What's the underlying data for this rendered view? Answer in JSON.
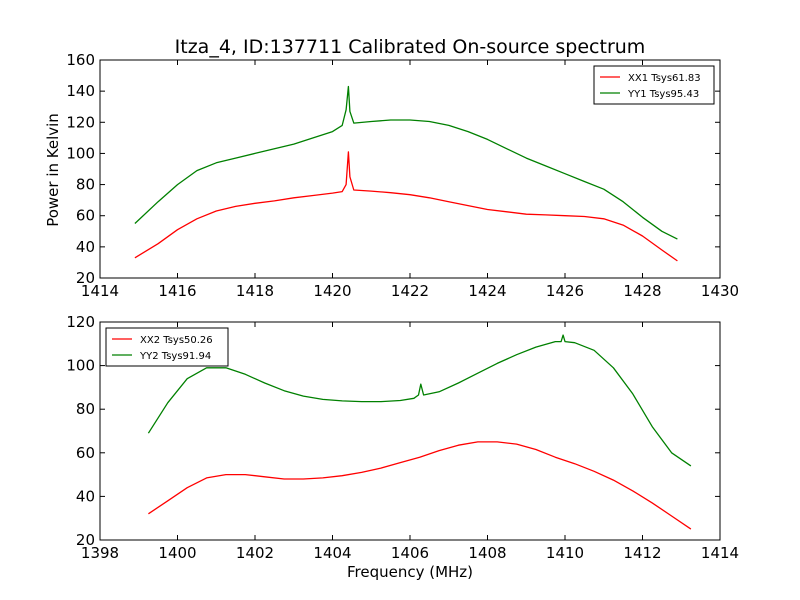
{
  "figure": {
    "title": "Itza_4, ID:137711 Calibrated On-source spectrum",
    "shared_ylabel": "Power in Kelvin",
    "shared_xlabel": "Frequency (MHz)"
  },
  "chart_data": [
    {
      "type": "line",
      "title": "Itza_4, ID:137711 Calibrated On-source spectrum",
      "xlabel": "",
      "ylabel": "Power in Kelvin",
      "xlim": [
        1414,
        1430
      ],
      "ylim": [
        20,
        160
      ],
      "xticks": [
        "1414",
        "1416",
        "1418",
        "1420",
        "1422",
        "1424",
        "1426",
        "1428",
        "1430"
      ],
      "yticks": [
        "20",
        "40",
        "60",
        "80",
        "100",
        "120",
        "140",
        "160"
      ],
      "grid": false,
      "legend_position": "top-right",
      "series": [
        {
          "name": "XX1 Tsys61.83",
          "color": "#ff0000",
          "x": [
            1414.9,
            1415.5,
            1416.0,
            1416.5,
            1417.0,
            1417.5,
            1418.0,
            1418.5,
            1419.0,
            1419.5,
            1420.0,
            1420.25,
            1420.35,
            1420.41,
            1420.45,
            1420.55,
            1421.0,
            1421.5,
            1422.0,
            1422.5,
            1423.0,
            1423.5,
            1424.0,
            1424.5,
            1425.0,
            1425.5,
            1426.0,
            1426.5,
            1427.0,
            1427.5,
            1428.0,
            1428.5,
            1428.9
          ],
          "y": [
            33,
            42,
            51,
            58,
            63,
            66,
            68,
            69.5,
            71.5,
            73,
            74.5,
            75.5,
            80,
            101,
            85,
            76.5,
            75.8,
            74.8,
            73.5,
            71.5,
            69,
            66.5,
            64,
            62.5,
            61,
            60.5,
            60,
            59.5,
            58,
            54,
            47,
            38,
            31
          ]
        },
        {
          "name": "YY1 Tsys95.43",
          "color": "#008000",
          "x": [
            1414.9,
            1415.5,
            1416.0,
            1416.5,
            1417.0,
            1417.5,
            1418.0,
            1418.5,
            1419.0,
            1419.5,
            1420.0,
            1420.25,
            1420.35,
            1420.41,
            1420.45,
            1420.55,
            1421.0,
            1421.5,
            1422.0,
            1422.5,
            1423.0,
            1423.5,
            1424.0,
            1424.5,
            1425.0,
            1425.5,
            1426.0,
            1426.5,
            1427.0,
            1427.5,
            1428.0,
            1428.5,
            1428.9
          ],
          "y": [
            55,
            69,
            80,
            89,
            94,
            97,
            100,
            103,
            106,
            110,
            114,
            118,
            128,
            143,
            127,
            119.5,
            120.5,
            121.5,
            121.5,
            120.5,
            118,
            114,
            109,
            103,
            97,
            92,
            87,
            82,
            77,
            69,
            59,
            50,
            45
          ]
        }
      ]
    },
    {
      "type": "line",
      "title": "",
      "xlabel": "Frequency (MHz)",
      "ylabel": "",
      "xlim": [
        1398,
        1414
      ],
      "ylim": [
        20,
        120
      ],
      "xticks": [
        "1398",
        "1400",
        "1402",
        "1404",
        "1406",
        "1408",
        "1410",
        "1412",
        "1414"
      ],
      "yticks": [
        "20",
        "40",
        "60",
        "80",
        "100",
        "120"
      ],
      "grid": false,
      "legend_position": "top-left",
      "series": [
        {
          "name": "XX2 Tsys50.26",
          "color": "#ff0000",
          "x": [
            1399.25,
            1399.75,
            1400.25,
            1400.75,
            1401.25,
            1401.75,
            1402.25,
            1402.75,
            1403.25,
            1403.75,
            1404.25,
            1404.75,
            1405.25,
            1405.75,
            1406.25,
            1406.75,
            1407.25,
            1407.75,
            1408.25,
            1408.75,
            1409.25,
            1409.75,
            1410.25,
            1410.75,
            1411.25,
            1411.75,
            1412.25,
            1412.75,
            1413.25
          ],
          "y": [
            32,
            38,
            44,
            48.5,
            50,
            50,
            49,
            48,
            48,
            48.5,
            49.5,
            51,
            53,
            55.5,
            58,
            61,
            63.5,
            65,
            65,
            64,
            61.5,
            58,
            55,
            51.5,
            47.5,
            42.5,
            37,
            31,
            25
          ]
        },
        {
          "name": "YY2 Tsys91.94",
          "color": "#008000",
          "x": [
            1399.25,
            1399.75,
            1400.25,
            1400.75,
            1401.25,
            1401.75,
            1402.25,
            1402.75,
            1403.25,
            1403.75,
            1404.25,
            1404.75,
            1405.25,
            1405.75,
            1406.1,
            1406.22,
            1406.28,
            1406.35,
            1406.75,
            1407.25,
            1407.75,
            1408.25,
            1408.75,
            1409.25,
            1409.75,
            1409.9,
            1409.95,
            1410.0,
            1410.25,
            1410.75,
            1411.25,
            1411.75,
            1412.25,
            1412.75,
            1413.25
          ],
          "y": [
            69,
            83,
            94,
            99,
            99,
            96,
            92,
            88.5,
            86,
            84.5,
            83.8,
            83.5,
            83.5,
            84,
            85,
            86.5,
            91.5,
            86.5,
            88,
            92,
            96.5,
            101,
            105,
            108.5,
            111,
            111,
            114,
            111,
            110.5,
            107,
            99,
            87,
            72,
            60,
            54
          ]
        }
      ]
    }
  ]
}
